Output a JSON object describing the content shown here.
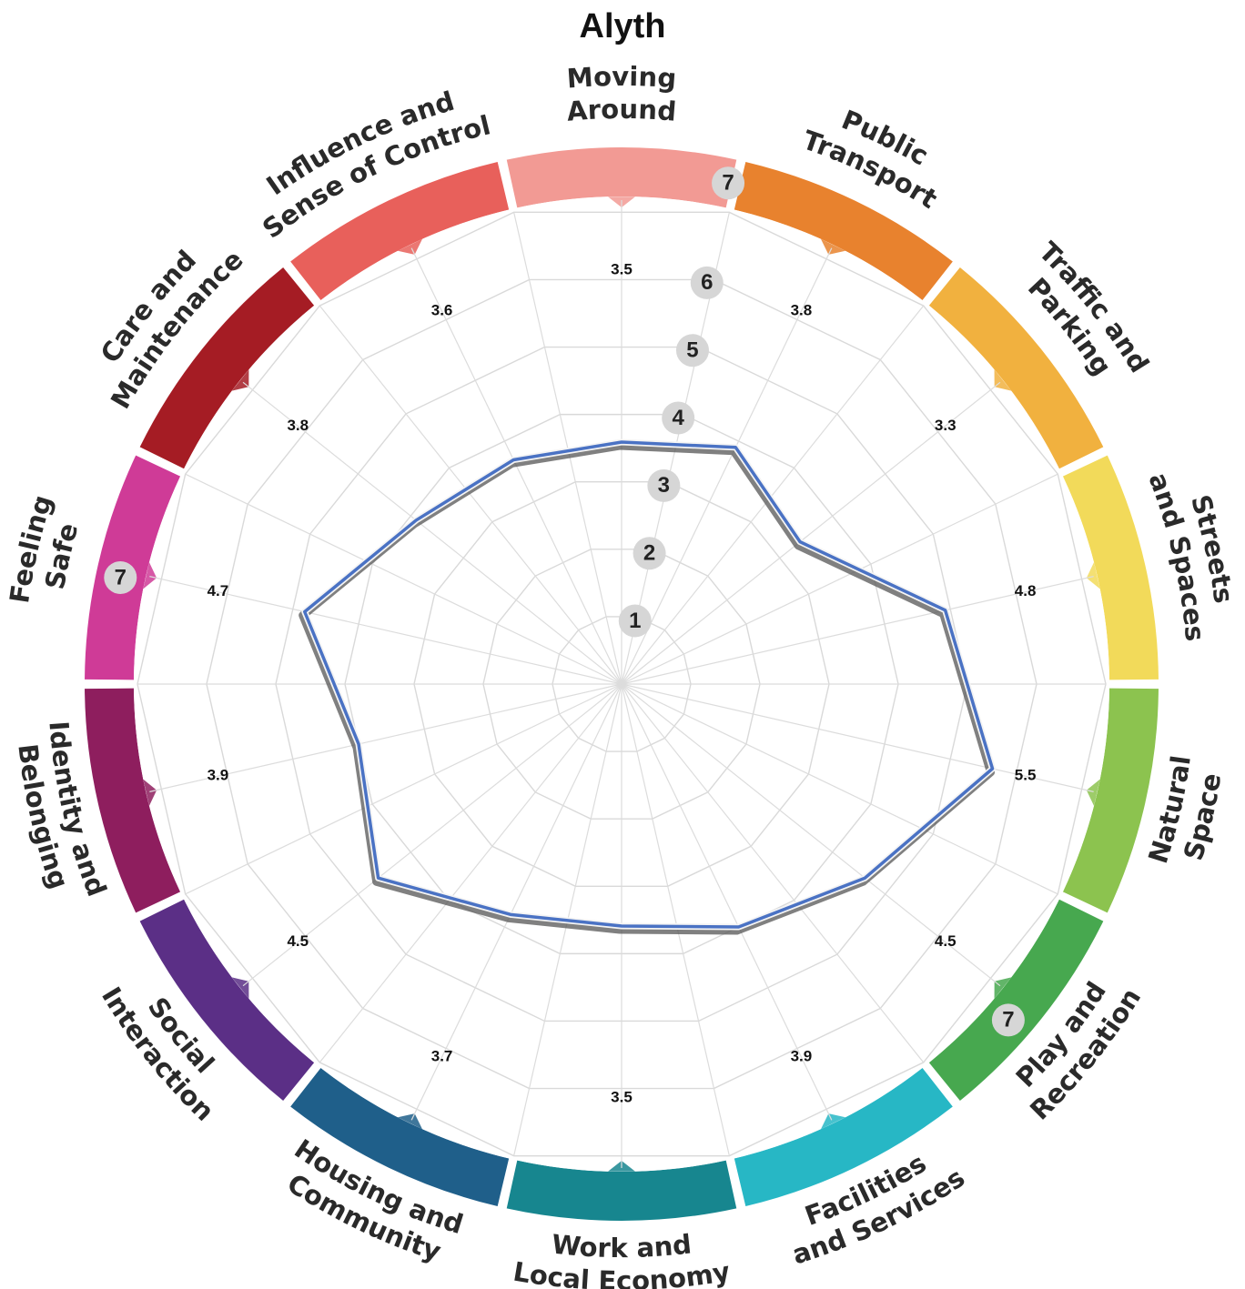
{
  "title": "Alyth",
  "chart_data": {
    "type": "radar",
    "title": "Alyth",
    "categories": [
      "Moving Around",
      "Public Transport",
      "Traffic and Parking",
      "Streets and Spaces",
      "Natural Space",
      "Play and Recreation",
      "Facilities and Services",
      "Work and Local Economy",
      "Housing and Community",
      "Social Interaction",
      "Identity and Belonging",
      "Feeling Safe",
      "Care and Maintenance",
      "Influence and Sense of Control"
    ],
    "category_label_lines": [
      [
        "Moving",
        "Around"
      ],
      [
        "Public",
        "Transport"
      ],
      [
        "Traffic and",
        "Parking"
      ],
      [
        "Streets",
        "and Spaces"
      ],
      [
        "Natural",
        "Space"
      ],
      [
        "Play and",
        "Recreation"
      ],
      [
        "Facilities",
        "and Services"
      ],
      [
        "Work and",
        "Local Economy"
      ],
      [
        "Housing and",
        "Community"
      ],
      [
        "Social",
        "Interaction"
      ],
      [
        "Identity and",
        "Belonging"
      ],
      [
        "Feeling",
        "Safe"
      ],
      [
        "Care and",
        "Maintenance"
      ],
      [
        "Influence and",
        "Sense of Control"
      ]
    ],
    "values": [
      3.5,
      3.8,
      3.3,
      4.8,
      5.5,
      4.5,
      3.9,
      3.5,
      3.7,
      4.5,
      3.9,
      4.7,
      3.8,
      3.6
    ],
    "value_labels": [
      "3.5",
      "3.8",
      "3.3",
      "4.8",
      "5.5",
      "4.5",
      "3.9",
      "3.5",
      "3.7",
      "4.5",
      "3.9",
      "4.7",
      "3.8",
      "3.6"
    ],
    "scale_ticks": [
      "1",
      "2",
      "3",
      "4",
      "5",
      "6",
      "7"
    ],
    "outer_tick_label": "7",
    "rlim": [
      0,
      7
    ],
    "grid": true,
    "colors": {
      "line": "#4a72c4",
      "shadow": "#555555",
      "segments": [
        "#f29a94",
        "#e8822e",
        "#f1b13f",
        "#f2da5a",
        "#8cc34f",
        "#47a84f",
        "#27b7c5",
        "#17868f",
        "#1f5f8a",
        "#5b2f86",
        "#8e1e5e",
        "#cf3b97",
        "#a51c24",
        "#e8605b"
      ]
    }
  }
}
